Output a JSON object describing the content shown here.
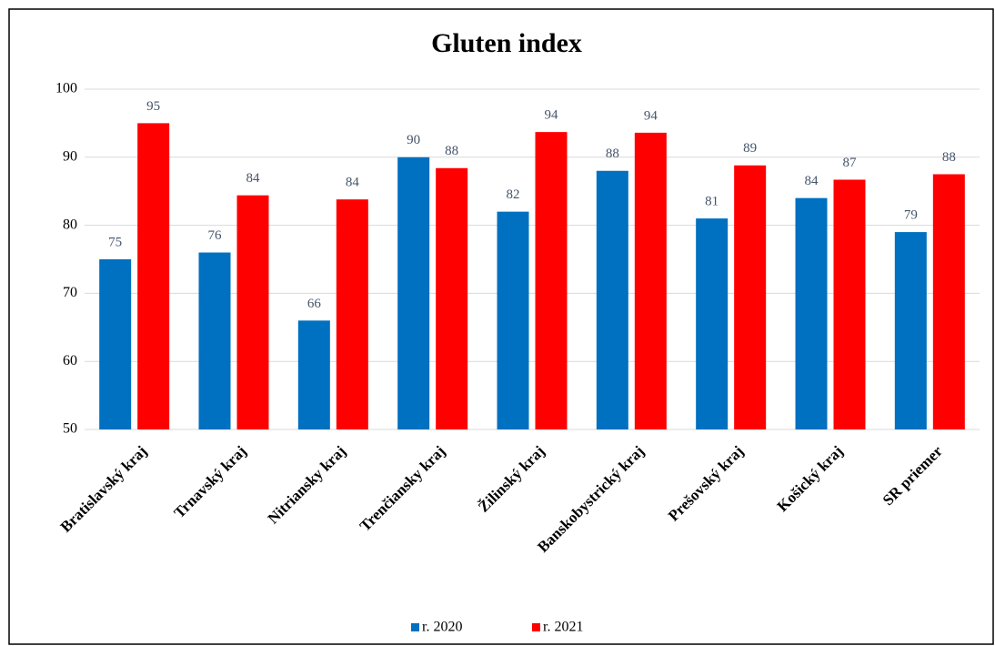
{
  "chart_data": {
    "type": "bar",
    "title": "Gluten index",
    "categories": [
      "Bratislavský kraj",
      "Trnavský kraj",
      "Nitriansky kraj",
      "Trenčiansky kraj",
      "Žilinský kraj",
      "Banskobystrický kraj",
      "Prešovský kraj",
      "Košický kraj",
      "SR priemer"
    ],
    "series": [
      {
        "name": "r. 2020",
        "color": "#0070c0",
        "values": [
          75,
          76,
          66,
          90,
          82,
          88,
          81,
          84,
          79
        ]
      },
      {
        "name": "r. 2021",
        "color": "#ff0000",
        "values": [
          95.0,
          84.4,
          83.8,
          88.4,
          93.7,
          93.6,
          88.8,
          86.7,
          87.5
        ],
        "value_labels": [
          "95",
          "84",
          "84",
          "88",
          "94",
          "94",
          "89",
          "87",
          "88"
        ]
      }
    ],
    "ylim": [
      50,
      100
    ],
    "yticks": [
      50,
      60,
      70,
      80,
      90,
      100
    ],
    "grid": true,
    "legend": "bottom"
  }
}
